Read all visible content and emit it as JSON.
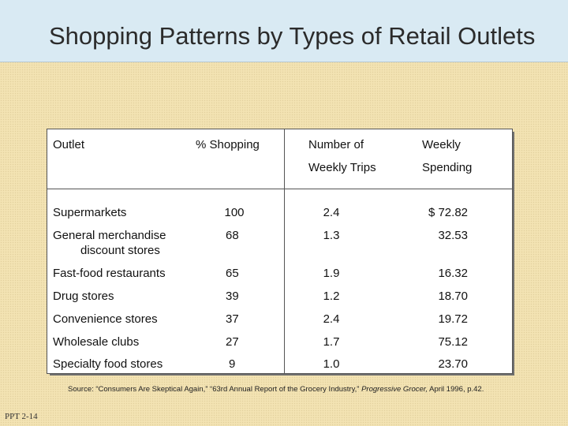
{
  "slide": {
    "title": "Shopping Patterns by Types of Retail Outlets",
    "slide_number": "PPT 2-14"
  },
  "table": {
    "headers": {
      "outlet": "Outlet",
      "shopping": "% Shopping",
      "trips_line1": "Number of",
      "trips_line2": "Weekly Trips",
      "spending_line1": "Weekly",
      "spending_line2": "Spending"
    },
    "rows": [
      {
        "outlet": "Supermarkets",
        "outlet_line2": "",
        "shopping": "100",
        "trips": "2.4",
        "spending": "$ 72.82"
      },
      {
        "outlet": "General merchandise",
        "outlet_line2": "discount stores",
        "shopping": "68",
        "trips": "1.3",
        "spending": "32.53"
      },
      {
        "outlet": "Fast-food restaurants",
        "outlet_line2": "",
        "shopping": "65",
        "trips": "1.9",
        "spending": "16.32"
      },
      {
        "outlet": "Drug stores",
        "outlet_line2": "",
        "shopping": "39",
        "trips": "1.2",
        "spending": "18.70"
      },
      {
        "outlet": "Convenience stores",
        "outlet_line2": "",
        "shopping": "37",
        "trips": "2.4",
        "spending": "19.72"
      },
      {
        "outlet": "Wholesale clubs",
        "outlet_line2": "",
        "shopping": "27",
        "trips": "1.7",
        "spending": "75.12"
      },
      {
        "outlet": "Specialty food stores",
        "outlet_line2": "",
        "shopping": "9",
        "trips": "1.0",
        "spending": "23.70"
      }
    ]
  },
  "source": {
    "prefix": "Source: “Consumers Are Skeptical Again,” “63rd Annual Report of the Grocery Industry,”",
    "publication": "Progressive Grocer,",
    "suffix": " April 1996, p.42."
  }
}
